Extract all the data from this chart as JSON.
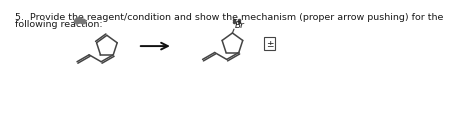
{
  "title_line1": "5.  Provide the reagent/condition and show the mechanism (proper arrow pushing) for the",
  "title_line2": "following reaction:",
  "title_fontsize": 6.8,
  "bg_color": "#ffffff",
  "text_color": "#1a1a1a",
  "molecule_color": "#444444",
  "arrow_color": "#111111",
  "br_label": "Br",
  "charge_label": "±",
  "blob_color": "#777777"
}
